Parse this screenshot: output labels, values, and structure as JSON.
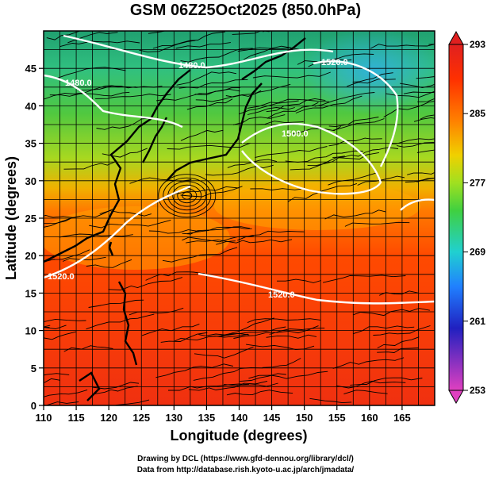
{
  "title": "GSM 06Z25Oct2025 (850.0hPa)",
  "x_axis": {
    "label": "Longitude (degrees)",
    "ticks": [
      "110",
      "115",
      "120",
      "125",
      "130",
      "135",
      "140",
      "145",
      "150",
      "155",
      "160",
      "165"
    ]
  },
  "y_axis": {
    "label": "Latitude  (degrees)",
    "ticks": [
      "0",
      "5",
      "10",
      "15",
      "20",
      "25",
      "30",
      "35",
      "40",
      "45"
    ]
  },
  "colorbar": {
    "ticks": [
      "293",
      "285",
      "277",
      "269",
      "261",
      "253"
    ],
    "range": [
      253,
      293
    ],
    "colors": [
      "#e040c0",
      "#2020c0",
      "#2080ff",
      "#20d0d0",
      "#40d040",
      "#a0e020",
      "#f0d000",
      "#ff8000",
      "#ff3000",
      "#e02020"
    ]
  },
  "contours": [
    {
      "label": "1480.0"
    },
    {
      "label": "1480.0"
    },
    {
      "label": "1520.0"
    },
    {
      "label": "1500.0"
    },
    {
      "label": "1520.0"
    },
    {
      "label": "1520.0"
    }
  ],
  "credits": {
    "line1": "Drawing by DCL (https://www.gfd-dennou.org/library/dcl/)",
    "line2": "Data from http://database.rish.kyoto-u.ac.jp/arch/jmadata/"
  }
}
